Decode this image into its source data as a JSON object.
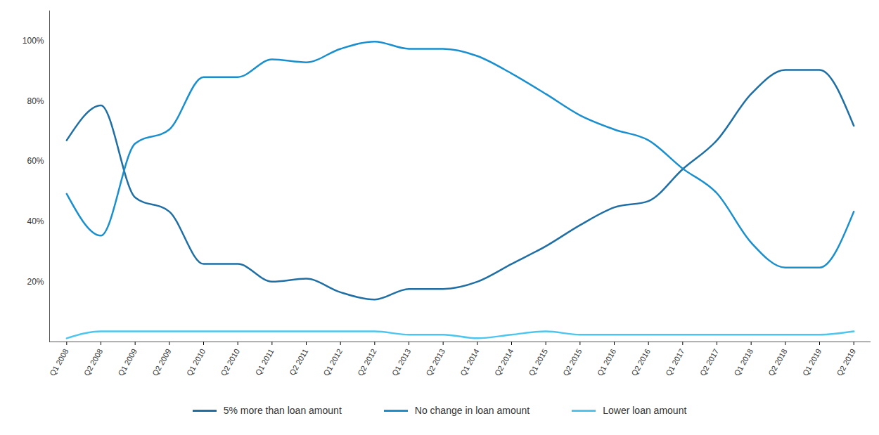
{
  "chart_data": {
    "type": "line",
    "categories": [
      "Q1 2008",
      "Q2 2008",
      "Q1 2009",
      "Q2 2009",
      "Q1 2010",
      "Q2 2010",
      "Q1 2011",
      "Q2 2011",
      "Q1 2012",
      "Q2 2012",
      "Q1 2013",
      "Q2 2013",
      "Q1 2014",
      "Q2 2014",
      "Q1 2015",
      "Q2 2015",
      "Q1 2016",
      "Q2 2016",
      "Q1 2017",
      "Q2 2017",
      "Q1 2018",
      "Q2 2018",
      "Q1 2019",
      "Q2 2019"
    ],
    "series": [
      {
        "name": "5% more than loan amount",
        "color": "#1f6fa5",
        "values": [
          67,
          78.6,
          48,
          43.3,
          25.9,
          25.9,
          20,
          21,
          16.5,
          14.1,
          17.6,
          17.6,
          20,
          25.9,
          31.8,
          38.8,
          44.7,
          46.8,
          57.4,
          67,
          82.4,
          90.4,
          90.4,
          71.8
        ]
      },
      {
        "name": "No change in loan amount",
        "color": "#1a8fcf",
        "values": [
          49.2,
          35.3,
          65.9,
          70.6,
          88,
          88,
          93.9,
          92.9,
          97.4,
          99.8,
          97.4,
          97.4,
          95,
          89.2,
          82.4,
          75.3,
          70.6,
          67,
          57.6,
          49.4,
          33,
          24.7,
          24.7,
          43.3
        ]
      },
      {
        "name": "Lower loan amount",
        "color": "#4cc6ef",
        "values": [
          1.2,
          3.5,
          3.5,
          3.5,
          3.5,
          3.5,
          3.5,
          3.5,
          3.5,
          3.5,
          2.4,
          2.4,
          1.2,
          2.4,
          3.5,
          2.4,
          2.4,
          2.4,
          2.4,
          2.4,
          2.4,
          2.4,
          2.4,
          3.5
        ]
      }
    ],
    "ylim": [
      0,
      110
    ],
    "yticks": [
      {
        "value": 20,
        "label": "20%"
      },
      {
        "value": 40,
        "label": "40%"
      },
      {
        "value": 60,
        "label": "60%"
      },
      {
        "value": 80,
        "label": "80%"
      },
      {
        "value": 100,
        "label": "100%"
      }
    ],
    "grid": false,
    "legend": "bottom"
  }
}
